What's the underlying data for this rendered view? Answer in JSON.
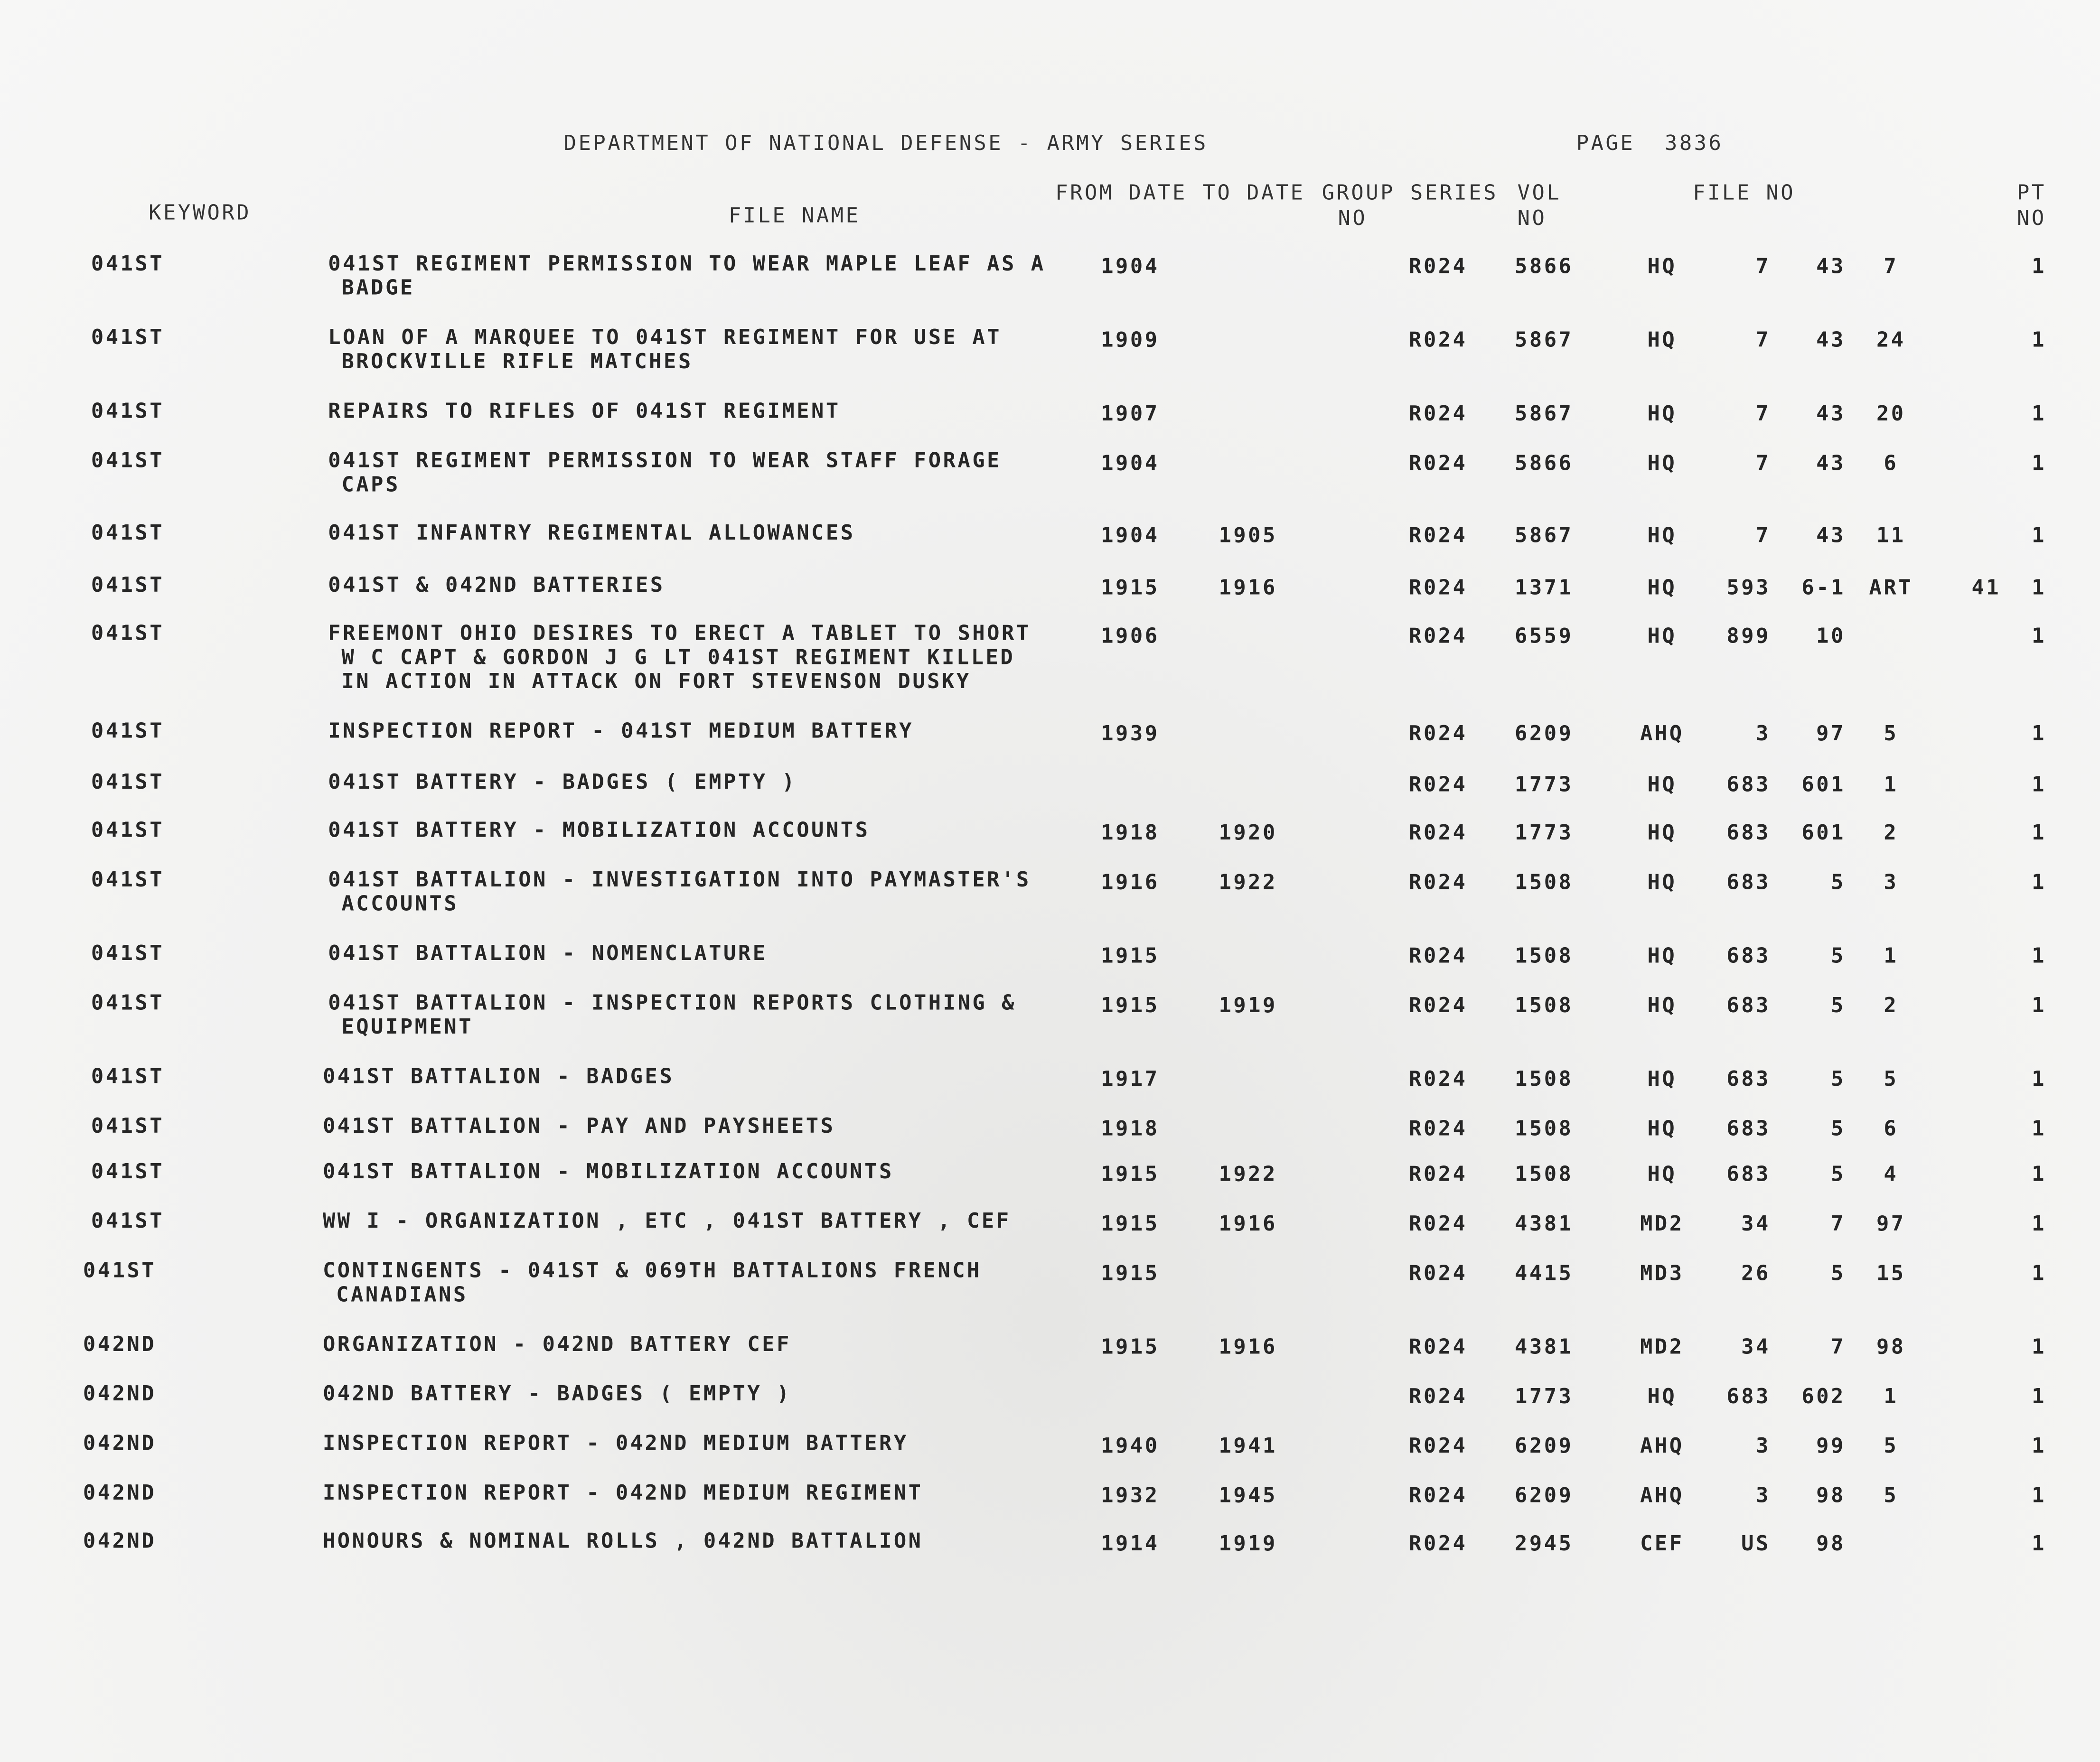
{
  "header": {
    "title": "DEPARTMENT OF NATIONAL DEFENSE - ARMY SERIES",
    "page_label": "PAGE",
    "page_number": "3836"
  },
  "columns": {
    "keyword": "KEYWORD",
    "file_name": "FILE NAME",
    "from_date": "FROM DATE",
    "to_date": "TO DATE",
    "group_no": [
      "GROUP",
      "NO"
    ],
    "series": "SERIES",
    "vol_no": [
      "VOL",
      "NO"
    ],
    "file_no": "FILE NO",
    "pt_no": [
      "PT",
      "NO"
    ]
  },
  "rows": [
    {
      "keyword": "041ST",
      "file_name": [
        "041ST REGIMENT PERMISSION TO WEAR MAPLE LEAF AS A",
        "BADGE"
      ],
      "from": "1904",
      "to": "",
      "group": "",
      "series": "R024",
      "vol": "5866",
      "file": [
        "HQ",
        "7",
        "43",
        "7"
      ],
      "file_extra": "",
      "pt": "1"
    },
    {
      "keyword": "041ST",
      "file_name": [
        "LOAN OF A MARQUEE TO 041ST REGIMENT FOR USE AT",
        "BROCKVILLE RIFLE MATCHES"
      ],
      "from": "1909",
      "to": "",
      "group": "",
      "series": "R024",
      "vol": "5867",
      "file": [
        "HQ",
        "7",
        "43",
        "24"
      ],
      "file_extra": "",
      "pt": "1"
    },
    {
      "keyword": "041ST",
      "file_name": [
        "REPAIRS TO RIFLES OF 041ST REGIMENT"
      ],
      "from": "1907",
      "to": "",
      "group": "",
      "series": "R024",
      "vol": "5867",
      "file": [
        "HQ",
        "7",
        "43",
        "20"
      ],
      "file_extra": "",
      "pt": "1"
    },
    {
      "keyword": "041ST",
      "file_name": [
        "041ST REGIMENT PERMISSION TO WEAR STAFF FORAGE",
        "CAPS"
      ],
      "from": "1904",
      "to": "",
      "group": "",
      "series": "R024",
      "vol": "5866",
      "file": [
        "HQ",
        "7",
        "43",
        "6"
      ],
      "file_extra": "",
      "pt": "1"
    },
    {
      "keyword": "041ST",
      "file_name": [
        "041ST INFANTRY REGIMENTAL ALLOWANCES"
      ],
      "from": "1904",
      "to": "1905",
      "group": "",
      "series": "R024",
      "vol": "5867",
      "file": [
        "HQ",
        "7",
        "43",
        "11"
      ],
      "file_extra": "",
      "pt": "1"
    },
    {
      "keyword": "041ST",
      "file_name": [
        "041ST & 042ND BATTERIES"
      ],
      "from": "1915",
      "to": "1916",
      "group": "",
      "series": "R024",
      "vol": "1371",
      "file": [
        "HQ",
        "593",
        "6-1",
        "ART"
      ],
      "file_extra": "41",
      "pt": "1"
    },
    {
      "keyword": "041ST",
      "file_name": [
        "FREEMONT OHIO DESIRES TO ERECT A TABLET TO SHORT",
        "W C CAPT & GORDON J G LT 041ST REGIMENT KILLED",
        "IN ACTION IN ATTACK ON FORT STEVENSON DUSKY"
      ],
      "from": "1906",
      "to": "",
      "group": "",
      "series": "R024",
      "vol": "6559",
      "file": [
        "HQ",
        "899",
        "10",
        ""
      ],
      "file_extra": "",
      "pt": "1"
    },
    {
      "keyword": "041ST",
      "file_name": [
        "INSPECTION REPORT - 041ST MEDIUM BATTERY"
      ],
      "from": "1939",
      "to": "",
      "group": "",
      "series": "R024",
      "vol": "6209",
      "file": [
        "AHQ",
        "3",
        "97",
        "5"
      ],
      "file_extra": "",
      "pt": "1"
    },
    {
      "keyword": "041ST",
      "file_name": [
        "041ST BATTERY - BADGES ( EMPTY )"
      ],
      "from": "",
      "to": "",
      "group": "",
      "series": "R024",
      "vol": "1773",
      "file": [
        "HQ",
        "683",
        "601",
        "1"
      ],
      "file_extra": "",
      "pt": "1"
    },
    {
      "keyword": "041ST",
      "file_name": [
        "041ST BATTERY - MOBILIZATION ACCOUNTS"
      ],
      "from": "1918",
      "to": "1920",
      "group": "",
      "series": "R024",
      "vol": "1773",
      "file": [
        "HQ",
        "683",
        "601",
        "2"
      ],
      "file_extra": "",
      "pt": "1"
    },
    {
      "keyword": "041ST",
      "file_name": [
        "041ST BATTALION - INVESTIGATION INTO PAYMASTER'S",
        "ACCOUNTS"
      ],
      "from": "1916",
      "to": "1922",
      "group": "",
      "series": "R024",
      "vol": "1508",
      "file": [
        "HQ",
        "683",
        "5",
        "3"
      ],
      "file_extra": "",
      "pt": "1"
    },
    {
      "keyword": "041ST",
      "file_name": [
        "041ST BATTALION - NOMENCLATURE"
      ],
      "from": "1915",
      "to": "",
      "group": "",
      "series": "R024",
      "vol": "1508",
      "file": [
        "HQ",
        "683",
        "5",
        "1"
      ],
      "file_extra": "",
      "pt": "1"
    },
    {
      "keyword": "041ST",
      "file_name": [
        "041ST BATTALION - INSPECTION REPORTS CLOTHING &",
        "EQUIPMENT"
      ],
      "from": "1915",
      "to": "1919",
      "group": "",
      "series": "R024",
      "vol": "1508",
      "file": [
        "HQ",
        "683",
        "5",
        "2"
      ],
      "file_extra": "",
      "pt": "1"
    },
    {
      "keyword": "041ST",
      "file_name": [
        "041ST BATTALION - BADGES"
      ],
      "from": "1917",
      "to": "",
      "group": "",
      "series": "R024",
      "vol": "1508",
      "file": [
        "HQ",
        "683",
        "5",
        "5"
      ],
      "file_extra": "",
      "pt": "1"
    },
    {
      "keyword": "041ST",
      "file_name": [
        "041ST BATTALION - PAY AND PAYSHEETS"
      ],
      "from": "1918",
      "to": "",
      "group": "",
      "series": "R024",
      "vol": "1508",
      "file": [
        "HQ",
        "683",
        "5",
        "6"
      ],
      "file_extra": "",
      "pt": "1"
    },
    {
      "keyword": "041ST",
      "file_name": [
        "041ST BATTALION - MOBILIZATION ACCOUNTS"
      ],
      "from": "1915",
      "to": "1922",
      "group": "",
      "series": "R024",
      "vol": "1508",
      "file": [
        "HQ",
        "683",
        "5",
        "4"
      ],
      "file_extra": "",
      "pt": "1"
    },
    {
      "keyword": "041ST",
      "file_name": [
        "WW I - ORGANIZATION , ETC , 041ST BATTERY , CEF"
      ],
      "from": "1915",
      "to": "1916",
      "group": "",
      "series": "R024",
      "vol": "4381",
      "file": [
        "MD2",
        "34",
        "7",
        "97"
      ],
      "file_extra": "",
      "pt": "1"
    },
    {
      "keyword": "041ST",
      "file_name": [
        "CONTINGENTS - 041ST & 069TH BATTALIONS FRENCH",
        "CANADIANS"
      ],
      "from": "1915",
      "to": "",
      "group": "",
      "series": "R024",
      "vol": "4415",
      "file": [
        "MD3",
        "26",
        "5",
        "15"
      ],
      "file_extra": "",
      "pt": "1"
    },
    {
      "keyword": "042ND",
      "file_name": [
        "ORGANIZATION - 042ND BATTERY CEF"
      ],
      "from": "1915",
      "to": "1916",
      "group": "",
      "series": "R024",
      "vol": "4381",
      "file": [
        "MD2",
        "34",
        "7",
        "98"
      ],
      "file_extra": "",
      "pt": "1"
    },
    {
      "keyword": "042ND",
      "file_name": [
        "042ND BATTERY - BADGES ( EMPTY )"
      ],
      "from": "",
      "to": "",
      "group": "",
      "series": "R024",
      "vol": "1773",
      "file": [
        "HQ",
        "683",
        "602",
        "1"
      ],
      "file_extra": "",
      "pt": "1"
    },
    {
      "keyword": "042ND",
      "file_name": [
        "INSPECTION REPORT - 042ND MEDIUM BATTERY"
      ],
      "from": "1940",
      "to": "1941",
      "group": "",
      "series": "R024",
      "vol": "6209",
      "file": [
        "AHQ",
        "3",
        "99",
        "5"
      ],
      "file_extra": "",
      "pt": "1"
    },
    {
      "keyword": "042ND",
      "file_name": [
        "INSPECTION REPORT - 042ND MEDIUM REGIMENT"
      ],
      "from": "1932",
      "to": "1945",
      "group": "",
      "series": "R024",
      "vol": "6209",
      "file": [
        "AHQ",
        "3",
        "98",
        "5"
      ],
      "file_extra": "",
      "pt": "1"
    },
    {
      "keyword": "042ND",
      "file_name": [
        "HONOURS & NOMINAL ROLLS , 042ND BATTALION"
      ],
      "from": "1914",
      "to": "1919",
      "group": "",
      "series": "R024",
      "vol": "2945",
      "file": [
        "CEF",
        "US",
        "98",
        ""
      ],
      "file_extra": "",
      "pt": "1"
    }
  ]
}
